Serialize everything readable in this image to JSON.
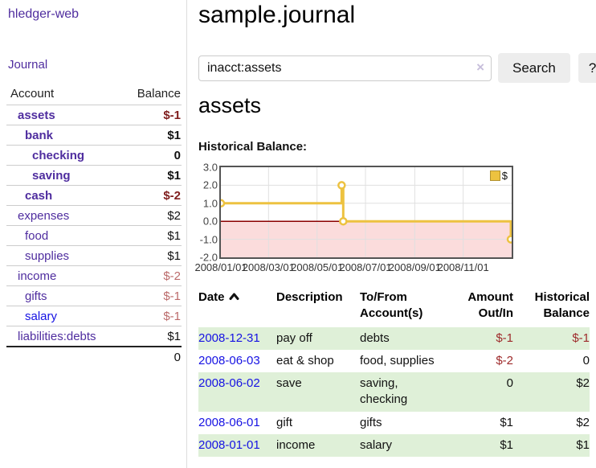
{
  "app": {
    "title": "hledger-web",
    "nav_journal": "Journal"
  },
  "colors": {
    "link_purple": "#4f2d9f",
    "link_blue": "#1612e3",
    "negative_strong": "#7f1d1d",
    "negative_soft": "#bb6a6a",
    "negative_register": "#9e2a2b",
    "row_stripe_green": "#dff0d8",
    "chart_line_yellow": "#edc240",
    "chart_negative_region": "#fbdcdc",
    "chart_zero_line": "#8b0000"
  },
  "sidebar": {
    "header": {
      "account": "Account",
      "balance": "Balance"
    },
    "accounts": [
      {
        "name": "assets",
        "depth": 0,
        "bold": true,
        "link_color": "purple",
        "balance": "$-1",
        "negative": true
      },
      {
        "name": "bank",
        "depth": 1,
        "bold": true,
        "link_color": "purple",
        "balance": "$1",
        "negative": false
      },
      {
        "name": "checking",
        "depth": 2,
        "bold": true,
        "link_color": "purple",
        "balance": "0",
        "negative": false
      },
      {
        "name": "saving",
        "depth": 2,
        "bold": true,
        "link_color": "purple",
        "balance": "$1",
        "negative": false
      },
      {
        "name": "cash",
        "depth": 1,
        "bold": true,
        "link_color": "purple",
        "balance": "$-2",
        "negative": true
      },
      {
        "name": "expenses",
        "depth": 0,
        "bold": false,
        "link_color": "purple",
        "balance": "$2",
        "negative": false
      },
      {
        "name": "food",
        "depth": 1,
        "bold": false,
        "link_color": "purple",
        "balance": "$1",
        "negative": false
      },
      {
        "name": "supplies",
        "depth": 1,
        "bold": false,
        "link_color": "purple",
        "balance": "$1",
        "negative": false
      },
      {
        "name": "income",
        "depth": 0,
        "bold": false,
        "link_color": "purple",
        "balance": "$-2",
        "negative": true
      },
      {
        "name": "gifts",
        "depth": 1,
        "bold": false,
        "link_color": "purple",
        "balance": "$-1",
        "negative": true
      },
      {
        "name": "salary",
        "depth": 1,
        "bold": false,
        "link_color": "blue",
        "balance": "$-1",
        "negative": true
      },
      {
        "name": "liabilities:debts",
        "depth": 0,
        "bold": false,
        "link_color": "purple",
        "balance": "$1",
        "negative": false
      }
    ],
    "total": "0"
  },
  "header": {
    "title": "sample.journal"
  },
  "search": {
    "value": "inacct:assets",
    "clear_icon": "×",
    "button": "Search",
    "help_button": "?"
  },
  "account_page": {
    "heading": "assets",
    "chart_label": "Historical Balance:"
  },
  "chart_data": {
    "type": "line",
    "title": "Historical Balance of assets",
    "step": true,
    "ylim": [
      -2,
      3
    ],
    "yticks": [
      3,
      2,
      1,
      0,
      -1,
      -2
    ],
    "x_range_days": 366,
    "xticks": [
      {
        "label": "2008/01/01",
        "day": 0
      },
      {
        "label": "2008/03/01",
        "day": 60
      },
      {
        "label": "2008/05/01",
        "day": 121
      },
      {
        "label": "2008/07/01",
        "day": 182
      },
      {
        "label": "2008/09/01",
        "day": 244
      },
      {
        "label": "2008/11/01",
        "day": 305
      }
    ],
    "series": [
      {
        "name": "$",
        "color": "#edc240",
        "points": [
          {
            "date": "2008-01-01",
            "day": 0,
            "value": 1
          },
          {
            "date": "2008-06-01",
            "day": 152,
            "value": 2
          },
          {
            "date": "2008-06-03",
            "day": 154,
            "value": 0
          },
          {
            "date": "2008-12-31",
            "day": 365,
            "value": -1
          }
        ]
      }
    ],
    "legend": {
      "label": "$",
      "position": "top-right"
    },
    "grid": true,
    "negative_region_color": "#fbdcdc",
    "zero_line_color": "#8b0000"
  },
  "register": {
    "columns": {
      "date": "Date",
      "description": "Description",
      "accounts": "To/From Account(s)",
      "amount": "Amount Out/In",
      "balance": "Historical Balance"
    },
    "sort": {
      "column": "date",
      "direction": "ascending"
    },
    "rows": [
      {
        "date": "2008-12-31",
        "description": "pay off",
        "accounts": "debts",
        "amount": "$-1",
        "balance": "$-1",
        "amount_negative": true,
        "balance_negative": true
      },
      {
        "date": "2008-06-03",
        "description": "eat & shop",
        "accounts": "food, supplies",
        "amount": "$-2",
        "balance": "0",
        "amount_negative": true,
        "balance_negative": false
      },
      {
        "date": "2008-06-02",
        "description": "save",
        "accounts": "saving, checking",
        "amount": "0",
        "balance": "$2",
        "amount_negative": false,
        "balance_negative": false
      },
      {
        "date": "2008-06-01",
        "description": "gift",
        "accounts": "gifts",
        "amount": "$1",
        "balance": "$2",
        "amount_negative": false,
        "balance_negative": false
      },
      {
        "date": "2008-01-01",
        "description": "income",
        "accounts": "salary",
        "amount": "$1",
        "balance": "$1",
        "amount_negative": false,
        "balance_negative": false
      }
    ]
  }
}
